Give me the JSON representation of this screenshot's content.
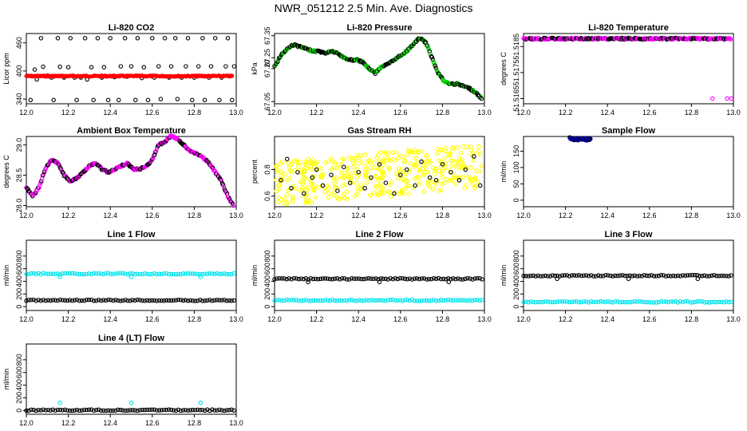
{
  "page_title": "NWR_051212  2.5 Min. Ave. Diagnostics",
  "chart_data": [
    {
      "id": "co2",
      "type": "scatter",
      "title": "Li-820 CO2",
      "ylabel": "Licor ppm",
      "xlim": [
        12.0,
        13.0
      ],
      "ylim": [
        330,
        480
      ],
      "xticks": [
        "12.0",
        "12.2",
        "12.4",
        "12.6",
        "12.8",
        "13.0"
      ],
      "yticks": [
        {
          "v": 340,
          "l": "340"
        },
        {
          "v": 400,
          "l": "400"
        },
        {
          "v": 460,
          "l": "460"
        }
      ],
      "series": [
        {
          "name": "black",
          "color": "#000000",
          "shape": "circle",
          "x": [
            12.02,
            12.04,
            12.05,
            12.07,
            12.08,
            12.1,
            12.12,
            12.13,
            12.15,
            12.16,
            12.18,
            12.2,
            12.21,
            12.23,
            12.24,
            12.26,
            12.28,
            12.29,
            12.31,
            12.32,
            12.34,
            12.36,
            12.37,
            12.39,
            12.4,
            12.42,
            12.44,
            12.45,
            12.47,
            12.48,
            12.5,
            12.52,
            12.53,
            12.55,
            12.56,
            12.58,
            12.6,
            12.61,
            12.63,
            12.64,
            12.66,
            12.68,
            12.69,
            12.71,
            12.72,
            12.74,
            12.76,
            12.77,
            12.79,
            12.8,
            12.82,
            12.84,
            12.85,
            12.87,
            12.88,
            12.9,
            12.92,
            12.93,
            12.95,
            12.96,
            12.98,
            12.99
          ],
          "y": [
            338,
            403,
            382,
            470,
            409,
            390,
            386,
            338,
            470,
            409,
            386,
            408,
            470,
            386,
            338,
            386,
            470,
            382,
            408,
            338,
            470,
            386,
            408,
            338,
            470,
            387,
            338,
            410,
            470,
            388,
            410,
            338,
            470,
            385,
            408,
            338,
            470,
            386,
            410,
            340,
            470,
            386,
            410,
            470,
            340,
            386,
            410,
            470,
            338,
            386,
            410,
            470,
            338,
            386,
            410,
            470,
            338,
            386,
            410,
            470,
            338,
            410
          ]
        },
        {
          "name": "red",
          "color": "#ff0000",
          "shape": "line",
          "x": [
            12.0,
            12.98
          ],
          "y": [
            389,
            389
          ]
        }
      ]
    },
    {
      "id": "pressure",
      "type": "scatter",
      "title": "Li-820 Pressure",
      "ylabel": "kPa",
      "xlim": [
        12.0,
        13.0
      ],
      "ylim": [
        67.04,
        67.36
      ],
      "xticks": [
        "12.0",
        "12.2",
        "12.4",
        "12.6",
        "12.8",
        "13.0"
      ],
      "yticks": [
        {
          "v": 67.05,
          "l": "67.05"
        },
        {
          "v": 67.2,
          "l": "67.20"
        },
        {
          "v": 67.25,
          "l": "67.25"
        },
        {
          "v": 67.35,
          "l": "67.35"
        }
      ],
      "series": [
        {
          "name": "curve",
          "color": "#000000",
          "alt": "#00cc00",
          "shape": "circle",
          "x": [
            12.0,
            12.03,
            12.06,
            12.09,
            12.12,
            12.15,
            12.18,
            12.21,
            12.24,
            12.27,
            12.3,
            12.33,
            12.36,
            12.39,
            12.42,
            12.45,
            12.48,
            12.51,
            12.54,
            12.57,
            12.6,
            12.63,
            12.66,
            12.69,
            12.72,
            12.75,
            12.78,
            12.81,
            12.84,
            12.87,
            12.9,
            12.93,
            12.96,
            12.99
          ],
          "y": [
            67.21,
            67.26,
            67.29,
            67.31,
            67.3,
            67.29,
            67.28,
            67.28,
            67.27,
            67.28,
            67.27,
            67.25,
            67.24,
            67.24,
            67.23,
            67.2,
            67.18,
            67.21,
            67.22,
            67.24,
            67.26,
            67.28,
            67.31,
            67.34,
            67.32,
            67.25,
            67.18,
            67.14,
            67.13,
            67.13,
            67.12,
            67.11,
            67.09,
            67.06
          ]
        }
      ]
    },
    {
      "id": "ltemp",
      "type": "scatter",
      "title": "Li-820 Temperature",
      "ylabel": "degrees C",
      "xlim": [
        12.0,
        13.0
      ],
      "ylim": [
        51.5163,
        51.519
      ],
      "xticks": [
        "12.0",
        "12.2",
        "12.4",
        "12.6",
        "12.8",
        "13.0"
      ],
      "yticks": [
        {
          "v": 51.5165,
          "l": "51.5165"
        },
        {
          "v": 51.5175,
          "l": "51.5175"
        },
        {
          "v": 51.5185,
          "l": "51.5185"
        }
      ],
      "series": [
        {
          "name": "flat",
          "color": "#ff00ff",
          "alt": "#000000",
          "shape": "circle",
          "x": [
            12.0,
            12.03,
            12.06,
            12.09,
            12.12,
            12.15,
            12.18,
            12.21,
            12.24,
            12.27,
            12.3,
            12.33,
            12.36,
            12.39,
            12.42,
            12.45,
            12.48,
            12.51,
            12.54,
            12.57,
            12.6,
            12.63,
            12.66,
            12.69,
            12.72,
            12.75,
            12.78,
            12.81,
            12.84,
            12.87,
            12.9,
            12.93,
            12.96,
            12.99
          ],
          "y": [
            51.5188,
            51.5188,
            51.5188,
            51.5188,
            51.5188,
            51.5188,
            51.5188,
            51.5188,
            51.5188,
            51.5188,
            51.5188,
            51.5188,
            51.5188,
            51.5188,
            51.5188,
            51.5188,
            51.5188,
            51.5188,
            51.5188,
            51.5188,
            51.5188,
            51.5188,
            51.5188,
            51.5188,
            51.5188,
            51.5188,
            51.5188,
            51.5188,
            51.5188,
            51.5188,
            51.5188,
            51.5188,
            51.5188,
            51.5188
          ]
        },
        {
          "name": "low",
          "color": "#ff00ff",
          "shape": "circle",
          "x": [
            12.9,
            12.97,
            12.99
          ],
          "y": [
            51.5165,
            51.5165,
            51.5165
          ]
        }
      ]
    },
    {
      "id": "ambient",
      "type": "scatter",
      "title": "Ambient Box Temperature",
      "ylabel": "degrees C",
      "xlim": [
        12.0,
        13.0
      ],
      "ylim": [
        27.98,
        29.14
      ],
      "xticks": [
        "12.0",
        "12.2",
        "12.4",
        "12.6",
        "12.8",
        "13.0"
      ],
      "yticks": [
        {
          "v": 28.0,
          "l": "28.0"
        },
        {
          "v": 28.5,
          "l": "28.5"
        },
        {
          "v": 29.0,
          "l": "29.0"
        }
      ],
      "series": [
        {
          "name": "curve",
          "color": "#ff00ff",
          "alt": "#000000",
          "shape": "circle",
          "x": [
            12.0,
            12.03,
            12.06,
            12.09,
            12.12,
            12.15,
            12.18,
            12.21,
            12.24,
            12.27,
            12.3,
            12.33,
            12.36,
            12.39,
            12.42,
            12.45,
            12.48,
            12.51,
            12.54,
            12.57,
            12.6,
            12.63,
            12.66,
            12.69,
            12.72,
            12.75,
            12.78,
            12.81,
            12.84,
            12.87,
            12.9,
            12.93,
            12.96,
            12.99
          ],
          "y": [
            28.3,
            28.15,
            28.3,
            28.6,
            28.75,
            28.7,
            28.5,
            28.4,
            28.45,
            28.55,
            28.65,
            28.7,
            28.6,
            28.55,
            28.6,
            28.65,
            28.7,
            28.6,
            28.6,
            28.65,
            28.75,
            29.0,
            29.05,
            29.15,
            29.1,
            29.0,
            28.9,
            28.85,
            28.8,
            28.7,
            28.55,
            28.4,
            28.15,
            27.98
          ]
        }
      ]
    },
    {
      "id": "rh",
      "type": "scatter",
      "title": "Gas Stream RH",
      "ylabel": "percent",
      "xlim": [
        12.0,
        13.0
      ],
      "ylim": [
        0.52,
        1.05
      ],
      "xticks": [
        "12.0",
        "12.2",
        "12.4",
        "12.6",
        "12.8",
        "13.0"
      ],
      "yticks": [
        {
          "v": 0.6,
          "l": "0.6"
        },
        {
          "v": 0.8,
          "l": "0.8"
        }
      ],
      "series": [
        {
          "name": "yellow",
          "color": "#ffff00",
          "shape": "circle",
          "x": [],
          "y": []
        },
        {
          "name": "black",
          "color": "#000000",
          "shape": "circle",
          "x": [
            12.03,
            12.06,
            12.08,
            12.11,
            12.14,
            12.18,
            12.2,
            12.23,
            12.27,
            12.3,
            12.33,
            12.36,
            12.4,
            12.43,
            12.46,
            12.5,
            12.53,
            12.57,
            12.6,
            12.63,
            12.67,
            12.7,
            12.74,
            12.77,
            12.8,
            12.84,
            12.88,
            12.91,
            12.95,
            12.98
          ],
          "y": [
            0.72,
            0.88,
            0.66,
            0.78,
            0.62,
            0.74,
            0.8,
            0.68,
            0.76,
            0.64,
            0.82,
            0.7,
            0.78,
            0.66,
            0.74,
            0.84,
            0.7,
            0.62,
            0.76,
            0.8,
            0.68,
            0.86,
            0.74,
            0.72,
            0.84,
            0.78,
            0.72,
            0.8,
            0.9,
            0.68
          ]
        }
      ]
    },
    {
      "id": "sample",
      "type": "scatter",
      "title": "Sample Flow",
      "ylabel": "ml/min",
      "xlim": [
        12.0,
        13.0
      ],
      "ylim": [
        -20,
        195
      ],
      "xticks": [
        "12.0",
        "12.2",
        "12.4",
        "12.6",
        "12.8",
        "13.0"
      ],
      "yticks": [
        {
          "v": 0,
          "l": "0"
        },
        {
          "v": 50,
          "l": "50"
        },
        {
          "v": 100,
          "l": "100"
        },
        {
          "v": 150,
          "l": "150"
        }
      ],
      "series": [
        {
          "name": "blue",
          "color": "#0000cc",
          "alt": "#000000",
          "shape": "circle",
          "x": [
            12.22,
            12.23,
            12.24,
            12.25,
            12.26,
            12.27,
            12.28,
            12.29,
            12.3,
            12.31,
            12.32
          ],
          "y": [
            190,
            188,
            186,
            187,
            185,
            188,
            186,
            187,
            185,
            186,
            187
          ]
        }
      ]
    },
    {
      "id": "line1",
      "type": "scatter",
      "title": "Line 1 Flow",
      "ylabel": "ml/min",
      "xlim": [
        12.0,
        13.0
      ],
      "ylim": [
        -60,
        1050
      ],
      "xticks": [
        "12.0",
        "12.2",
        "12.4",
        "12.6",
        "12.8",
        "13.0"
      ],
      "yticks": [
        {
          "v": 0,
          "l": "0"
        },
        {
          "v": 200,
          "l": "200"
        },
        {
          "v": 400,
          "l": "400"
        },
        {
          "v": 600,
          "l": "600"
        },
        {
          "v": 800,
          "l": "800"
        }
      ],
      "series": [
        {
          "name": "cyan",
          "color": "#00e5ee",
          "level": 520,
          "spikes": [
            {
              "x": 12.16,
              "y": 470
            },
            {
              "x": 12.5,
              "y": 470
            },
            {
              "x": 12.83,
              "y": 470
            }
          ]
        },
        {
          "name": "black",
          "color": "#000000",
          "level": 100,
          "spikes": []
        }
      ]
    },
    {
      "id": "line2",
      "type": "scatter",
      "title": "Line 2 Flow",
      "ylabel": "ml/min",
      "xlim": [
        12.0,
        13.0
      ],
      "ylim": [
        -60,
        1050
      ],
      "xticks": [
        "12.0",
        "12.2",
        "12.4",
        "12.6",
        "12.8",
        "13.0"
      ],
      "yticks": [
        {
          "v": 0,
          "l": "0"
        },
        {
          "v": 200,
          "l": "200"
        },
        {
          "v": 400,
          "l": "400"
        },
        {
          "v": 600,
          "l": "600"
        },
        {
          "v": 800,
          "l": "800"
        }
      ],
      "series": [
        {
          "name": "black",
          "color": "#000000",
          "level": 440,
          "spikes": [
            {
              "x": 12.16,
              "y": 390
            },
            {
              "x": 12.5,
              "y": 390
            },
            {
              "x": 12.83,
              "y": 390
            }
          ]
        },
        {
          "name": "cyan",
          "color": "#00e5ee",
          "level": 100,
          "spikes": []
        }
      ]
    },
    {
      "id": "line3",
      "type": "scatter",
      "title": "Line 3 Flow",
      "ylabel": "ml/min",
      "xlim": [
        12.0,
        13.0
      ],
      "ylim": [
        -60,
        1050
      ],
      "xticks": [
        "12.0",
        "12.2",
        "12.4",
        "12.6",
        "12.8",
        "13.0"
      ],
      "yticks": [
        {
          "v": 0,
          "l": "0"
        },
        {
          "v": 200,
          "l": "200"
        },
        {
          "v": 400,
          "l": "400"
        },
        {
          "v": 600,
          "l": "600"
        },
        {
          "v": 800,
          "l": "800"
        }
      ],
      "series": [
        {
          "name": "black",
          "color": "#000000",
          "level": 490,
          "spikes": [
            {
              "x": 12.16,
              "y": 440
            },
            {
              "x": 12.5,
              "y": 440
            },
            {
              "x": 12.83,
              "y": 440
            }
          ]
        },
        {
          "name": "cyan",
          "color": "#00e5ee",
          "level": 75,
          "spikes": []
        }
      ]
    },
    {
      "id": "line4",
      "type": "scatter",
      "title": "Line 4 (LT) Flow",
      "ylabel": "ml/min",
      "xlim": [
        12.0,
        13.0
      ],
      "ylim": [
        -60,
        1050
      ],
      "xticks": [
        "12.0",
        "12.2",
        "12.4",
        "12.6",
        "12.8",
        "13.0"
      ],
      "yticks": [
        {
          "v": 0,
          "l": "0"
        },
        {
          "v": 200,
          "l": "200"
        },
        {
          "v": 400,
          "l": "400"
        },
        {
          "v": 600,
          "l": "600"
        },
        {
          "v": 800,
          "l": "800"
        }
      ],
      "series": [
        {
          "name": "black",
          "color": "#000000",
          "level": 5,
          "spikes": []
        },
        {
          "name": "cyan",
          "color": "#00e5ee",
          "level": -1,
          "spikes": [
            {
              "x": 12.16,
              "y": 120
            },
            {
              "x": 12.5,
              "y": 120
            },
            {
              "x": 12.83,
              "y": 120
            }
          ]
        }
      ]
    }
  ]
}
